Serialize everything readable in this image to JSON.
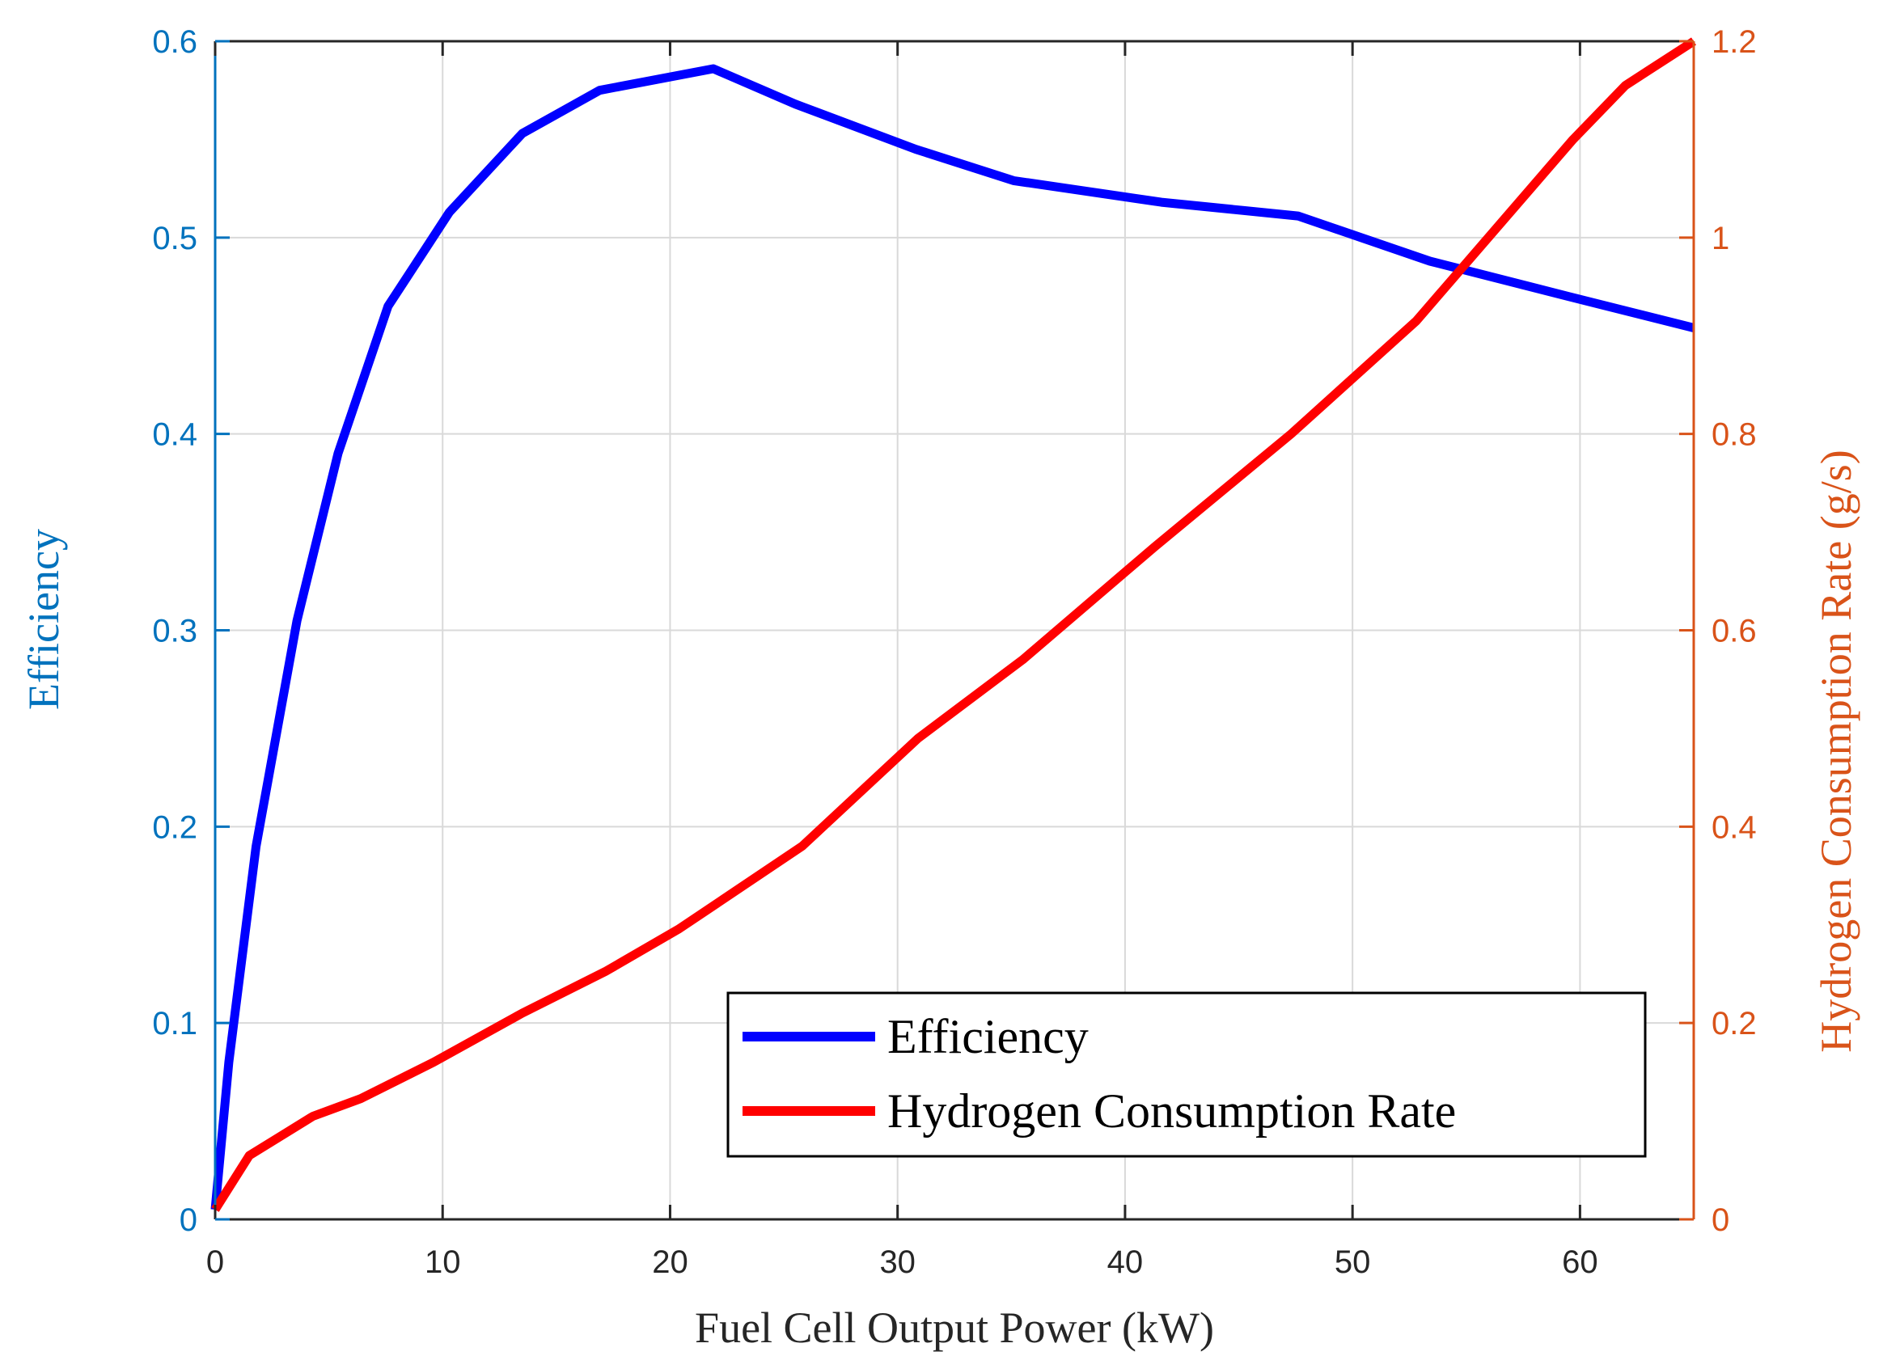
{
  "chart_data": {
    "type": "line",
    "xlabel": "Fuel Cell Output Power (kW)",
    "ylabel_left": "Efficiency",
    "ylabel_right": "Hydrogen Consumption Rate (g/s)",
    "xlim": [
      0,
      65
    ],
    "ylim_left": [
      0,
      0.6
    ],
    "ylim_right": [
      0,
      1.2
    ],
    "x_ticks": [
      "0",
      "10",
      "20",
      "30",
      "40",
      "50",
      "60"
    ],
    "y_left_ticks": [
      "0",
      "0.1",
      "0.2",
      "0.3",
      "0.4",
      "0.5",
      "0.6"
    ],
    "y_right_ticks": [
      "0",
      "0.2",
      "0.4",
      "0.6",
      "0.8",
      "1",
      "1.2"
    ],
    "grid": true,
    "legend_position": "bottom-right",
    "colors": {
      "left_axis": "#0072BD",
      "right_axis": "#D95319",
      "grid": "#D9D9D9"
    },
    "series": [
      {
        "name": "Efficiency",
        "axis": "left",
        "color": "#0000FF",
        "x": [
          0,
          0.6,
          1.8,
          3.6,
          5.4,
          7.6,
          10.3,
          13.5,
          16.9,
          21.9,
          25.5,
          30.8,
          35.1,
          41.6,
          47.6,
          53.4,
          59.5,
          65
        ],
        "y": [
          0.005,
          0.08,
          0.19,
          0.305,
          0.39,
          0.465,
          0.513,
          0.553,
          0.575,
          0.586,
          0.568,
          0.545,
          0.529,
          0.518,
          0.511,
          0.488,
          0.47,
          0.454
        ]
      },
      {
        "name": "Hydrogen Consumption Rate",
        "axis": "right",
        "color": "#FF0000",
        "x": [
          0,
          1.5,
          4.3,
          6.4,
          9.6,
          13.5,
          17.2,
          20.4,
          25.8,
          30.9,
          35.5,
          41.3,
          47.3,
          52.8,
          59.7,
          62.0,
          65
        ],
        "y": [
          0.01,
          0.065,
          0.105,
          0.123,
          0.16,
          0.21,
          0.253,
          0.296,
          0.38,
          0.49,
          0.57,
          0.685,
          0.8,
          0.915,
          1.1,
          1.155,
          1.2
        ]
      }
    ]
  }
}
